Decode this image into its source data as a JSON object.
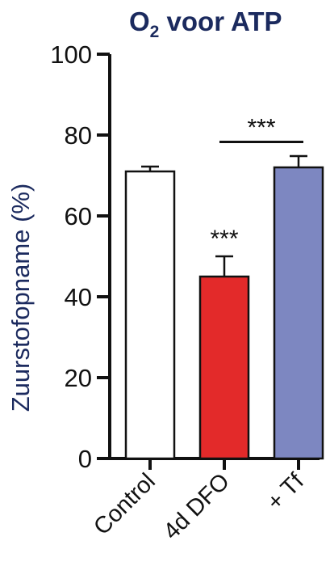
{
  "chart_data": {
    "type": "bar",
    "title_main": "O",
    "title_sub": "2",
    "title_rest": " voor ATP",
    "ylabel": "Zuurstofopname (%)",
    "xlabel": "",
    "ylim": [
      0,
      100
    ],
    "yticks": [
      0,
      20,
      40,
      60,
      80,
      100
    ],
    "categories": [
      "Control",
      "4d DFO",
      "+ Tf"
    ],
    "values": [
      71,
      45,
      72
    ],
    "errors": [
      1.2,
      5.0,
      2.8
    ],
    "bar_colors": [
      "#ffffff",
      "#e32a2a",
      "#7d87c1"
    ],
    "significance": [
      {
        "label": "***",
        "target": "4d DFO"
      },
      {
        "label": "***",
        "from": "4d DFO",
        "to": "+ Tf"
      }
    ],
    "colors": {
      "title": "#1b2a5e",
      "axis": "#111111"
    }
  }
}
